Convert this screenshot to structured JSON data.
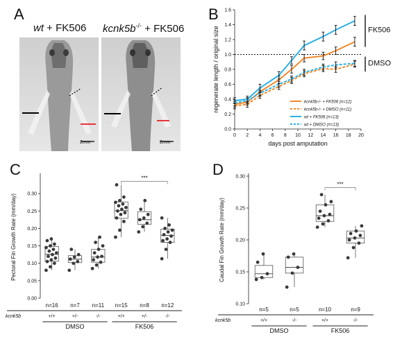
{
  "panel_a": {
    "letter": "A",
    "titles": [
      {
        "geno": "wt",
        "sup": "",
        "treat": "+ FK506"
      },
      {
        "geno": "kcnk5b",
        "sup": "-/-",
        "treat": "+ FK506"
      }
    ],
    "scale_label": "2mm"
  },
  "panel_b": {
    "letter": "B",
    "bracket_fk": "FK506",
    "bracket_dmso": "DMSO",
    "legend": [
      "kcnk5b-/- + FK506 (n=12)",
      "kcnk5b-/- + DMSO (n=11)",
      "wt + FK506 (n=13)",
      "wt + DMSO (n=13)"
    ]
  },
  "panel_c": {
    "letter": "C",
    "sig": "***",
    "row_label": "kcnk5b"
  },
  "panel_d": {
    "letter": "D",
    "sig": "***",
    "row_label": "kcnk5b"
  },
  "chart_data": [
    {
      "type": "line",
      "xlabel": "days post amputation",
      "ylabel": "regenerate length / original size",
      "xlim": [
        0,
        20
      ],
      "ylim": [
        0,
        1.6
      ],
      "xticks": [
        0,
        2,
        4,
        6,
        8,
        10,
        12,
        14,
        16,
        18,
        20
      ],
      "yticks": [
        0,
        0.2,
        0.4,
        0.6,
        0.8,
        1.0,
        1.2,
        1.4,
        1.6
      ],
      "reference_line": 1.0,
      "series": [
        {
          "name": "kcnk5b-/- + FK506 (n=12)",
          "color": "#f08a2c",
          "dashed": false,
          "x": [
            0,
            2,
            4,
            7,
            9,
            11,
            14,
            16,
            19
          ],
          "y": [
            0.33,
            0.36,
            0.5,
            0.66,
            0.8,
            0.95,
            0.98,
            1.05,
            1.17
          ],
          "err": [
            0.04,
            0.04,
            0.05,
            0.05,
            0.05,
            0.05,
            0.05,
            0.05,
            0.06
          ]
        },
        {
          "name": "kcnk5b-/- + DMSO (n=11)",
          "color": "#f08a2c",
          "dashed": true,
          "x": [
            0,
            2,
            4,
            7,
            9,
            11,
            14,
            16,
            19
          ],
          "y": [
            0.31,
            0.33,
            0.45,
            0.57,
            0.65,
            0.74,
            0.81,
            0.8,
            0.87
          ],
          "err": [
            0.04,
            0.04,
            0.04,
            0.04,
            0.04,
            0.04,
            0.04,
            0.04,
            0.04
          ]
        },
        {
          "name": "wt + FK506 (n=13)",
          "color": "#2bb0e6",
          "dashed": false,
          "x": [
            0,
            2,
            4,
            7,
            9,
            11,
            14,
            16,
            19
          ],
          "y": [
            0.38,
            0.4,
            0.55,
            0.72,
            0.92,
            1.12,
            1.24,
            1.33,
            1.45
          ],
          "err": [
            0.04,
            0.04,
            0.05,
            0.05,
            0.05,
            0.06,
            0.06,
            0.06,
            0.06
          ]
        },
        {
          "name": "wt + DMSO (n=13)",
          "color": "#2bb0e6",
          "dashed": true,
          "x": [
            0,
            2,
            4,
            7,
            9,
            11,
            14,
            16,
            19
          ],
          "y": [
            0.35,
            0.38,
            0.48,
            0.6,
            0.67,
            0.76,
            0.83,
            0.86,
            0.88
          ],
          "err": [
            0.04,
            0.04,
            0.04,
            0.04,
            0.04,
            0.04,
            0.04,
            0.04,
            0.04
          ]
        }
      ]
    },
    {
      "type": "box",
      "ylabel": "Pectoral Fin Growth Rate (mm/day)",
      "ylim": [
        0,
        0.35
      ],
      "yticks": [
        0,
        0.05,
        0.1,
        0.15,
        0.2,
        0.25,
        0.3
      ],
      "groups": [
        "DMSO",
        "FK506"
      ],
      "categories": [
        "+/+",
        "+/-",
        "-/-",
        "+/+",
        "+/-",
        "-/-"
      ],
      "n_labels": [
        "n=16",
        "n=7",
        "n=11",
        "n=15",
        "n=8",
        "n=12"
      ],
      "boxes": [
        {
          "min": 0.08,
          "q1": 0.106,
          "median": 0.126,
          "q3": 0.148,
          "max": 0.17
        },
        {
          "min": 0.08,
          "q1": 0.102,
          "median": 0.112,
          "q3": 0.122,
          "max": 0.14
        },
        {
          "min": 0.085,
          "q1": 0.103,
          "median": 0.118,
          "q3": 0.14,
          "max": 0.175
        },
        {
          "min": 0.175,
          "q1": 0.229,
          "median": 0.251,
          "q3": 0.276,
          "max": 0.325
        },
        {
          "min": 0.19,
          "q1": 0.212,
          "median": 0.225,
          "q3": 0.248,
          "max": 0.28
        },
        {
          "min": 0.113,
          "q1": 0.16,
          "median": 0.18,
          "q3": 0.198,
          "max": 0.23
        }
      ],
      "points": [
        [
          0.08,
          0.09,
          0.1,
          0.105,
          0.11,
          0.115,
          0.12,
          0.125,
          0.13,
          0.135,
          0.14,
          0.145,
          0.15,
          0.155,
          0.165,
          0.17
        ],
        [
          0.08,
          0.1,
          0.105,
          0.112,
          0.118,
          0.125,
          0.14
        ],
        [
          0.085,
          0.095,
          0.103,
          0.11,
          0.118,
          0.12,
          0.13,
          0.14,
          0.15,
          0.16,
          0.175
        ],
        [
          0.175,
          0.195,
          0.22,
          0.23,
          0.24,
          0.245,
          0.25,
          0.255,
          0.26,
          0.265,
          0.27,
          0.275,
          0.28,
          0.29,
          0.325
        ],
        [
          0.19,
          0.205,
          0.215,
          0.225,
          0.23,
          0.24,
          0.255,
          0.28
        ],
        [
          0.113,
          0.14,
          0.16,
          0.165,
          0.17,
          0.178,
          0.182,
          0.19,
          0.195,
          0.2,
          0.21,
          0.23
        ]
      ],
      "significance": {
        "from": 3,
        "to": 5,
        "level": 0.335,
        "label": "***"
      }
    },
    {
      "type": "box",
      "ylabel": "Caudal Fin Growth Rate (mm/day)",
      "ylim": [
        0.1,
        0.3
      ],
      "yticks": [
        0.1,
        0.15,
        0.2,
        0.25,
        0.3
      ],
      "groups": [
        "DMSO",
        "FK506"
      ],
      "categories": [
        "+/+",
        "-/-",
        "+/+",
        "-/-"
      ],
      "n_labels": [
        "n=5",
        "n=5",
        "n=10",
        "n=9"
      ],
      "boxes": [
        {
          "min": 0.138,
          "q1": 0.141,
          "median": 0.147,
          "q3": 0.16,
          "max": 0.178
        },
        {
          "min": 0.126,
          "q1": 0.148,
          "median": 0.157,
          "q3": 0.173,
          "max": 0.178
        },
        {
          "min": 0.22,
          "q1": 0.229,
          "median": 0.238,
          "q3": 0.255,
          "max": 0.271
        },
        {
          "min": 0.172,
          "q1": 0.195,
          "median": 0.203,
          "q3": 0.214,
          "max": 0.222
        }
      ],
      "points": [
        [
          0.138,
          0.141,
          0.147,
          0.165,
          0.178
        ],
        [
          0.126,
          0.148,
          0.157,
          0.173,
          0.178
        ],
        [
          0.22,
          0.225,
          0.23,
          0.234,
          0.238,
          0.24,
          0.245,
          0.255,
          0.26,
          0.271
        ],
        [
          0.172,
          0.188,
          0.195,
          0.2,
          0.203,
          0.207,
          0.21,
          0.214,
          0.222
        ]
      ],
      "significance": {
        "from": 2,
        "to": 3,
        "level": 0.282,
        "label": "***"
      }
    }
  ]
}
